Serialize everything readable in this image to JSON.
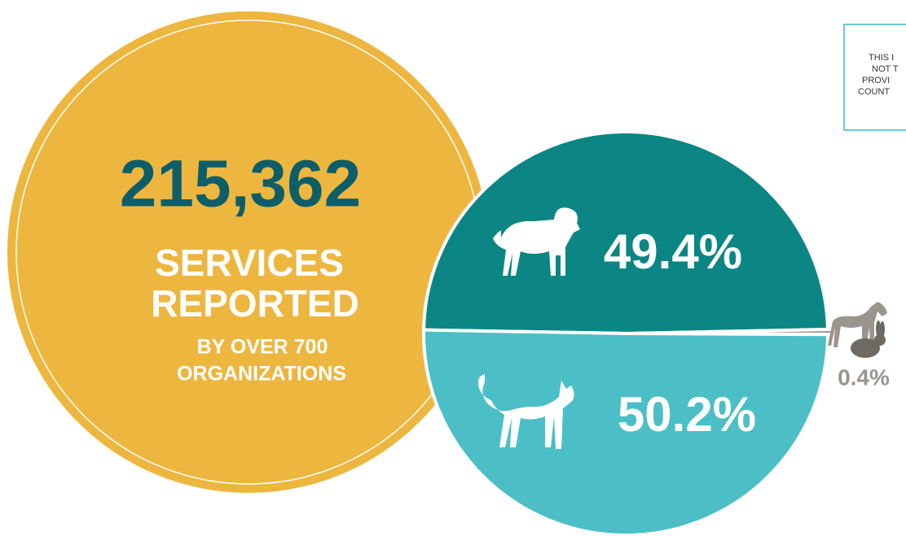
{
  "headline": {
    "number": "215,362",
    "line1": "SERVICES",
    "line2": "REPORTED",
    "line3": "BY OVER 700",
    "line4": "ORGANIZATIONS"
  },
  "note": [
    "THIS I",
    "NOT T",
    "PROVI",
    "COUNT"
  ],
  "chart_data": {
    "type": "pie",
    "values": [
      49.4,
      0.4,
      50.2
    ],
    "value_labels": [
      "49.4%",
      "0.4%",
      "50.2%"
    ],
    "colors": [
      "#0b8684",
      "#98958d",
      "#4bbfc5"
    ]
  }
}
